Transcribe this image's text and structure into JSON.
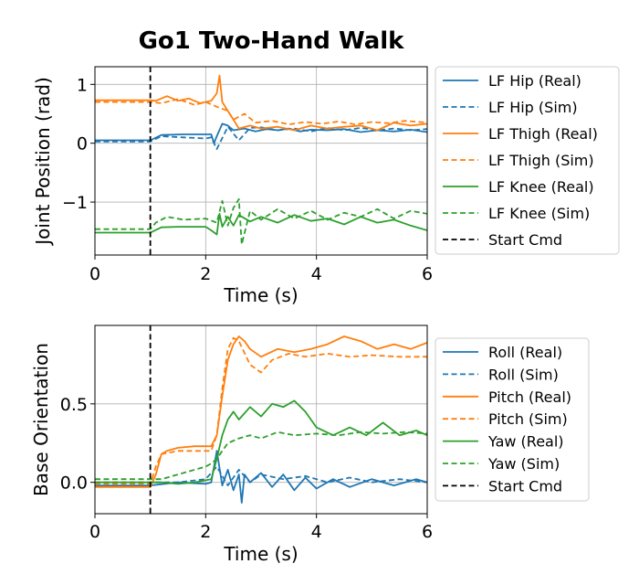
{
  "figure": {
    "title": "Go1 Two-Hand Walk"
  },
  "colors": {
    "blue": "#1f77b4",
    "orange": "#ff7f0e",
    "green": "#2ca02c",
    "black": "#000000",
    "grid": "#b0b0b0"
  },
  "chart_data": [
    {
      "type": "line",
      "xlabel": "Time (s)",
      "ylabel": "Joint Position (rad)",
      "xlim": [
        0,
        6
      ],
      "ylim": [
        -1.9,
        1.3
      ],
      "xticks": [
        0,
        2,
        4,
        6
      ],
      "yticks": [
        -1,
        0,
        1
      ],
      "ytick_labels": [
        "−1",
        "0",
        "1"
      ],
      "grid": true,
      "start_cmd_x": 1.0,
      "legend_position": "outside-right",
      "series": [
        {
          "name": "LF Hip (Real)",
          "color": "blue",
          "dash": "solid",
          "x": [
            0,
            1.0,
            1.2,
            1.6,
            2.0,
            2.1,
            2.15,
            2.2,
            2.3,
            2.4,
            2.5,
            2.7,
            2.9,
            3.1,
            3.3,
            3.5,
            3.7,
            3.9,
            4.2,
            4.5,
            4.8,
            5.1,
            5.4,
            5.7,
            6.0
          ],
          "y": [
            0.05,
            0.05,
            0.14,
            0.15,
            0.15,
            0.15,
            0.0,
            0.12,
            0.33,
            0.3,
            0.22,
            0.25,
            0.2,
            0.24,
            0.22,
            0.25,
            0.2,
            0.23,
            0.22,
            0.24,
            0.19,
            0.22,
            0.2,
            0.23,
            0.19
          ]
        },
        {
          "name": "LF Hip (Sim)",
          "color": "blue",
          "dash": "dashed",
          "x": [
            0,
            1.0,
            1.2,
            1.6,
            2.0,
            2.1,
            2.2,
            2.4,
            2.6,
            2.8,
            3.0,
            3.3,
            3.6,
            3.9,
            4.2,
            4.5,
            4.8,
            5.1,
            5.4,
            5.7,
            6.0
          ],
          "y": [
            0.03,
            0.03,
            0.12,
            0.1,
            0.08,
            0.1,
            -0.1,
            0.28,
            0.05,
            0.26,
            0.27,
            0.22,
            0.25,
            0.2,
            0.26,
            0.22,
            0.26,
            0.22,
            0.25,
            0.22,
            0.24
          ]
        },
        {
          "name": "LF Thigh (Real)",
          "color": "orange",
          "dash": "solid",
          "x": [
            0,
            1.0,
            1.1,
            1.3,
            1.5,
            1.7,
            1.9,
            2.1,
            2.2,
            2.25,
            2.3,
            2.4,
            2.5,
            2.6,
            2.8,
            3.0,
            3.3,
            3.6,
            3.9,
            4.2,
            4.5,
            4.8,
            5.1,
            5.4,
            5.7,
            6.0
          ],
          "y": [
            0.73,
            0.73,
            0.72,
            0.8,
            0.72,
            0.76,
            0.68,
            0.72,
            0.85,
            1.15,
            0.7,
            0.55,
            0.4,
            0.25,
            0.3,
            0.25,
            0.28,
            0.22,
            0.3,
            0.25,
            0.28,
            0.3,
            0.22,
            0.35,
            0.3,
            0.33
          ]
        },
        {
          "name": "LF Thigh (Sim)",
          "color": "orange",
          "dash": "dashed",
          "x": [
            0,
            1.0,
            1.2,
            1.5,
            1.8,
            2.0,
            2.2,
            2.4,
            2.5,
            2.7,
            2.9,
            3.2,
            3.5,
            3.8,
            4.1,
            4.4,
            4.7,
            5.0,
            5.3,
            5.6,
            6.0
          ],
          "y": [
            0.7,
            0.7,
            0.68,
            0.75,
            0.65,
            0.7,
            0.62,
            0.55,
            0.4,
            0.5,
            0.35,
            0.38,
            0.32,
            0.36,
            0.33,
            0.37,
            0.32,
            0.36,
            0.34,
            0.38,
            0.35
          ]
        },
        {
          "name": "LF Knee (Real)",
          "color": "green",
          "dash": "solid",
          "x": [
            0,
            1.0,
            1.2,
            1.5,
            1.8,
            2.0,
            2.1,
            2.2,
            2.25,
            2.3,
            2.4,
            2.5,
            2.6,
            2.8,
            3.0,
            3.3,
            3.6,
            3.9,
            4.2,
            4.5,
            4.8,
            5.1,
            5.4,
            5.7,
            6.0
          ],
          "y": [
            -1.52,
            -1.52,
            -1.43,
            -1.42,
            -1.42,
            -1.42,
            -1.48,
            -1.55,
            -1.2,
            -1.42,
            -1.25,
            -1.4,
            -1.22,
            -1.33,
            -1.25,
            -1.35,
            -1.22,
            -1.32,
            -1.28,
            -1.38,
            -1.25,
            -1.35,
            -1.3,
            -1.4,
            -1.48
          ]
        },
        {
          "name": "LF Knee (Sim)",
          "color": "green",
          "dash": "dashed",
          "x": [
            0,
            1.0,
            1.1,
            1.3,
            1.6,
            2.0,
            2.2,
            2.3,
            2.4,
            2.5,
            2.6,
            2.65,
            2.8,
            3.0,
            3.3,
            3.6,
            3.9,
            4.2,
            4.5,
            4.8,
            5.1,
            5.4,
            5.7,
            6.0
          ],
          "y": [
            -1.46,
            -1.46,
            -1.35,
            -1.25,
            -1.3,
            -1.28,
            -1.35,
            -0.98,
            -1.4,
            -1.1,
            -0.95,
            -1.72,
            -1.15,
            -1.3,
            -1.12,
            -1.28,
            -1.15,
            -1.3,
            -1.18,
            -1.25,
            -1.12,
            -1.28,
            -1.15,
            -1.2
          ]
        }
      ],
      "legend_extra": [
        {
          "name": "Start Cmd",
          "color": "black",
          "dash": "dashed"
        }
      ]
    },
    {
      "type": "line",
      "xlabel": "Time (s)",
      "ylabel": "Base Orientation",
      "xlim": [
        0,
        6
      ],
      "ylim": [
        -0.2,
        1.0
      ],
      "xticks": [
        0,
        2,
        4,
        6
      ],
      "yticks": [
        0,
        0.5
      ],
      "ytick_labels": [
        "0.0",
        "0.5"
      ],
      "grid": true,
      "start_cmd_x": 1.0,
      "legend_position": "outside-right",
      "series": [
        {
          "name": "Roll (Real)",
          "color": "blue",
          "dash": "solid",
          "x": [
            0,
            1.0,
            1.5,
            2.0,
            2.1,
            2.2,
            2.3,
            2.4,
            2.5,
            2.6,
            2.65,
            2.7,
            2.8,
            3.0,
            3.2,
            3.4,
            3.6,
            3.8,
            4.0,
            4.3,
            4.6,
            5.0,
            5.4,
            5.8,
            6.0
          ],
          "y": [
            -0.02,
            -0.02,
            0.0,
            -0.01,
            0.0,
            0.2,
            -0.02,
            0.08,
            -0.05,
            0.05,
            -0.13,
            0.05,
            0.0,
            0.06,
            -0.03,
            0.05,
            -0.05,
            0.03,
            -0.04,
            0.02,
            -0.03,
            0.02,
            -0.02,
            0.02,
            0.0
          ]
        },
        {
          "name": "Roll (Sim)",
          "color": "blue",
          "dash": "dashed",
          "x": [
            0,
            1.0,
            1.5,
            2.0,
            2.2,
            2.4,
            2.6,
            2.8,
            3.0,
            3.4,
            3.8,
            4.2,
            4.6,
            5.0,
            5.5,
            6.0
          ],
          "y": [
            0.0,
            0.0,
            0.0,
            0.02,
            0.1,
            -0.02,
            0.08,
            0.0,
            0.05,
            0.02,
            0.04,
            0.0,
            0.03,
            0.0,
            0.02,
            0.0
          ]
        },
        {
          "name": "Pitch (Real)",
          "color": "orange",
          "dash": "solid",
          "x": [
            0,
            1.0,
            1.1,
            1.2,
            1.3,
            1.5,
            1.8,
            2.1,
            2.2,
            2.3,
            2.4,
            2.5,
            2.6,
            2.7,
            2.8,
            3.0,
            3.3,
            3.6,
            3.9,
            4.2,
            4.5,
            4.8,
            5.1,
            5.4,
            5.7,
            6.0
          ],
          "y": [
            -0.03,
            -0.03,
            0.05,
            0.18,
            0.2,
            0.22,
            0.23,
            0.23,
            0.3,
            0.55,
            0.78,
            0.88,
            0.93,
            0.9,
            0.85,
            0.8,
            0.85,
            0.83,
            0.85,
            0.88,
            0.93,
            0.9,
            0.85,
            0.88,
            0.85,
            0.89
          ]
        },
        {
          "name": "Pitch (Sim)",
          "color": "orange",
          "dash": "dashed",
          "x": [
            0,
            1.0,
            1.1,
            1.2,
            1.5,
            1.8,
            2.0,
            2.1,
            2.2,
            2.3,
            2.4,
            2.5,
            2.6,
            2.8,
            3.0,
            3.2,
            3.5,
            3.8,
            4.2,
            4.6,
            5.0,
            5.5,
            6.0
          ],
          "y": [
            -0.01,
            -0.01,
            0.1,
            0.18,
            0.2,
            0.2,
            0.2,
            0.2,
            0.3,
            0.6,
            0.85,
            0.92,
            0.9,
            0.75,
            0.7,
            0.78,
            0.82,
            0.8,
            0.82,
            0.8,
            0.81,
            0.8,
            0.8
          ]
        },
        {
          "name": "Yaw (Real)",
          "color": "green",
          "dash": "solid",
          "x": [
            0,
            1.0,
            1.2,
            1.5,
            1.8,
            2.1,
            2.2,
            2.3,
            2.4,
            2.5,
            2.6,
            2.8,
            3.0,
            3.2,
            3.4,
            3.6,
            3.8,
            4.0,
            4.3,
            4.6,
            4.9,
            5.2,
            5.5,
            5.8,
            6.0
          ],
          "y": [
            0.0,
            0.0,
            0.0,
            -0.01,
            0.0,
            0.02,
            0.15,
            0.3,
            0.4,
            0.45,
            0.4,
            0.48,
            0.42,
            0.5,
            0.48,
            0.52,
            0.45,
            0.35,
            0.3,
            0.35,
            0.3,
            0.38,
            0.3,
            0.33,
            0.3
          ]
        },
        {
          "name": "Yaw (Sim)",
          "color": "green",
          "dash": "dashed",
          "x": [
            0,
            1.0,
            1.2,
            1.5,
            1.8,
            2.0,
            2.1,
            2.2,
            2.3,
            2.4,
            2.6,
            2.8,
            3.0,
            3.3,
            3.6,
            4.0,
            4.4,
            4.8,
            5.2,
            5.6,
            6.0
          ],
          "y": [
            0.02,
            0.02,
            0.02,
            0.05,
            0.08,
            0.1,
            0.12,
            0.15,
            0.2,
            0.25,
            0.28,
            0.3,
            0.28,
            0.32,
            0.3,
            0.31,
            0.3,
            0.32,
            0.31,
            0.32,
            0.31
          ]
        }
      ],
      "legend_extra": [
        {
          "name": "Start Cmd",
          "color": "black",
          "dash": "dashed"
        }
      ]
    }
  ]
}
